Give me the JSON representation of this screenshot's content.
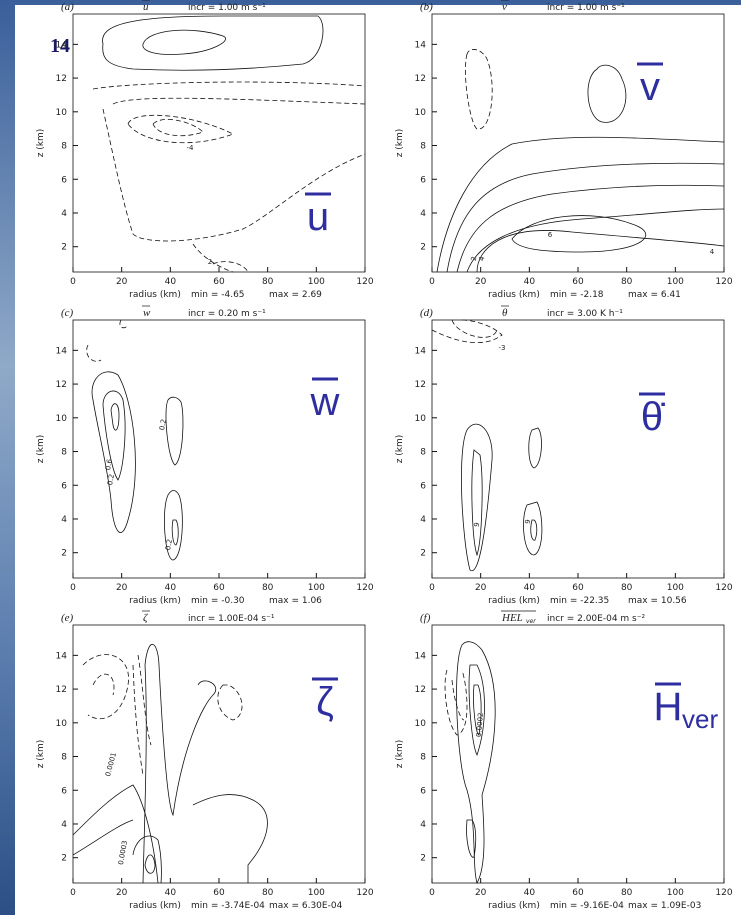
{
  "slide_number": "14",
  "chart_data": [
    {
      "type": "contour",
      "panel": "(a)",
      "variable": "u",
      "incr": "incr = 1.00 m s⁻¹",
      "x_label": "radius (km)",
      "y_label": "z (km)",
      "min": "min = -4.65",
      "max": "max = 2.69",
      "big_label": "u",
      "xlim": [
        0,
        120
      ],
      "ylim": [
        0.5,
        15.8
      ],
      "xticks": [
        0,
        20,
        40,
        60,
        80,
        100,
        120
      ],
      "yticks": [
        2,
        4,
        6,
        8,
        10,
        12,
        14
      ],
      "contour_labels": [
        -4,
        2
      ]
    },
    {
      "type": "contour",
      "panel": "(b)",
      "variable": "v",
      "incr": "incr = 1.00 m s⁻¹",
      "x_label": "radius (km)",
      "y_label": "z (km)",
      "min": "min = -2.18",
      "max": "max = 6.41",
      "big_label": "v",
      "xlim": [
        0,
        120
      ],
      "ylim": [
        0.5,
        15.8
      ],
      "xticks": [
        0,
        20,
        40,
        60,
        80,
        100,
        120
      ],
      "yticks": [
        2,
        4,
        6,
        8,
        10,
        12,
        14
      ],
      "contour_labels": [
        6,
        2,
        4,
        4
      ]
    },
    {
      "type": "contour",
      "panel": "(c)",
      "variable": "w",
      "incr": "incr = 0.20 m s⁻¹",
      "x_label": "radius (km)",
      "y_label": "z (km)",
      "min": "min = -0.30",
      "max": "max = 1.06",
      "big_label": "w",
      "xlim": [
        0,
        120
      ],
      "ylim": [
        0.5,
        15.8
      ],
      "xticks": [
        0,
        20,
        40,
        60,
        80,
        100,
        120
      ],
      "yticks": [
        2,
        4,
        6,
        8,
        10,
        12,
        14
      ],
      "contour_labels": [
        0.2,
        0.6,
        0.2,
        0.2
      ]
    },
    {
      "type": "contour",
      "panel": "(d)",
      "variable": "θ",
      "incr": "incr = 3.00 K h⁻¹",
      "x_label": "radius (km)",
      "y_label": "z (km)",
      "min": "min = -22.35",
      "max": "max = 10.56",
      "big_label": "θ̇",
      "xlim": [
        0,
        120
      ],
      "ylim": [
        0.5,
        15.8
      ],
      "xticks": [
        0,
        20,
        40,
        60,
        80,
        100,
        120
      ],
      "yticks": [
        2,
        4,
        6,
        8,
        10,
        12,
        14
      ],
      "contour_labels": [
        -3,
        9,
        9
      ]
    },
    {
      "type": "contour",
      "panel": "(e)",
      "variable": "ζ",
      "incr": "incr = 1.00E-04 s⁻¹",
      "x_label": "radius (km)",
      "y_label": "z (km)",
      "min": "min = -3.74E-04",
      "max": "max = 6.30E-04",
      "big_label": "ζ",
      "xlim": [
        0,
        120
      ],
      "ylim": [
        0.5,
        15.8
      ],
      "xticks": [
        0,
        20,
        40,
        60,
        80,
        100,
        120
      ],
      "yticks": [
        2,
        4,
        6,
        8,
        10,
        12,
        14
      ],
      "contour_labels": [
        0.0001,
        0.0003
      ]
    },
    {
      "type": "contour",
      "panel": "(f)",
      "variable": "HEL",
      "variable_sub": "ver",
      "incr": "incr = 2.00E-04 m s⁻²",
      "x_label": "radius (km)",
      "y_label": "z (km)",
      "min": "min = -9.16E-04",
      "max": "max = 1.09E-03",
      "big_label": "H",
      "big_label_sub": "ver",
      "xlim": [
        0,
        120
      ],
      "ylim": [
        0.5,
        15.8
      ],
      "xticks": [
        0,
        20,
        40,
        60,
        80,
        100,
        120
      ],
      "yticks": [
        2,
        4,
        6,
        8,
        10,
        12,
        14
      ],
      "contour_labels": [
        0.0002
      ]
    }
  ]
}
